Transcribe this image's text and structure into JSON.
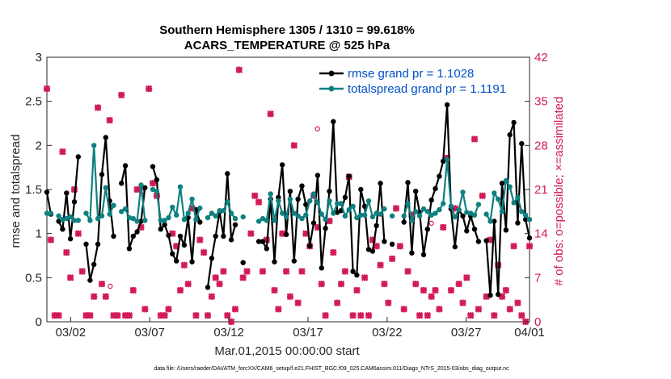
{
  "chart_data": {
    "type": "line",
    "title_line1": "Southern Hemisphere 1305 / 1310 = 99.618%",
    "title_line2": "ACARS_TEMPERATURE @ 525 hPa",
    "xlabel": "Mar.01,2015 00:00:00 start",
    "ylabel_left": "rmse and totalspread",
    "ylabel_right": "# of obs: o=possible; ×=assimilated",
    "x_range_days": [
      0.5,
      31.0
    ],
    "ylim_left": [
      0,
      3
    ],
    "ylim_right": [
      0,
      42
    ],
    "x_ticks": [
      {
        "label": "03/02",
        "day": 2
      },
      {
        "label": "03/07",
        "day": 7
      },
      {
        "label": "03/12",
        "day": 12
      },
      {
        "label": "03/17",
        "day": 17
      },
      {
        "label": "03/22",
        "day": 22
      },
      {
        "label": "03/27",
        "day": 27
      },
      {
        "label": "04/01",
        "day": 32
      }
    ],
    "y_ticks_left": [
      "0",
      "0.5",
      "1",
      "1.5",
      "2",
      "2.5",
      "3"
    ],
    "y_ticks_right": [
      "0",
      "7",
      "14",
      "21",
      "28",
      "35",
      "42"
    ],
    "colors": {
      "rmse": "#000000",
      "spread": "#0f8080",
      "obs": "#d11a56",
      "legend_text": "#0050c8"
    },
    "series": [
      {
        "name": "rmse",
        "legend": "rmse grand pr = 1.1028",
        "values": [
          1.47,
          1.22,
          null,
          1.14,
          1.05,
          1.46,
          0.94,
          1.36,
          1.87,
          null,
          0.88,
          0.47,
          0.65,
          0.88,
          1.67,
          2.09,
          1.37,
          0.97,
          null,
          1.57,
          1.77,
          0.83,
          0.97,
          1.02,
          1.14,
          1.52,
          null,
          1.76,
          1.61,
          1.05,
          1.1,
          0.98,
          0.77,
          0.69,
          0.97,
          0.87,
          1.18,
          0.68,
          1.27,
          1.13,
          null,
          0.39,
          0.72,
          0.97,
          1.25,
          0.97,
          1.68,
          0.93,
          1.1,
          null,
          0.67,
          null,
          null,
          null,
          0.91,
          0.91,
          0.83,
          1.39,
          0.68,
          1.41,
          1.78,
          0.99,
          1.48,
          0.69,
          1.39,
          1.54,
          1.33,
          0.86,
          1.12,
          1.66,
          0.61,
          1.06,
          1.48,
          2.27,
          1.24,
          1.26,
          1.41,
          1.65,
          0.57,
          0.53,
          1.5,
          1.31,
          0.82,
          0.8,
          1.09,
          1.57,
          0.91,
          null,
          0.88,
          null,
          null,
          1.13,
          1.58,
          0.78,
          1.48,
          1.24,
          0.76,
          1.05,
          1.38,
          1.51,
          1.65,
          1.82,
          2.46,
          1.28,
          0.85,
          1.27,
          1.2,
          1.03,
          1.2,
          1.05,
          0.91,
          null,
          0.92,
          0.3,
          1.14,
          0.31,
          1.57,
          1.04,
          2.12,
          2.26,
          1.12,
          2.02,
          1.16,
          0.95
        ]
      },
      {
        "name": "totalspread",
        "legend": "totalspread grand pr = 1.1191",
        "values": [
          1.23,
          1.23,
          null,
          1.2,
          1.16,
          1.17,
          1.19,
          1.15,
          1.15,
          null,
          1.23,
          1.15,
          2.0,
          1.17,
          1.2,
          1.52,
          1.22,
          1.32,
          null,
          1.25,
          1.28,
          1.18,
          1.17,
          1.14,
          1.55,
          1.15,
          null,
          1.5,
          1.48,
          1.15,
          1.15,
          1.18,
          1.3,
          1.21,
          1.53,
          1.16,
          1.23,
          1.39,
          1.16,
          1.29,
          null,
          1.18,
          1.23,
          1.2,
          1.26,
          1.26,
          1.36,
          1.23,
          1.17,
          null,
          1.19,
          null,
          null,
          null,
          1.14,
          1.17,
          1.15,
          1.45,
          1.15,
          1.37,
          1.23,
          1.19,
          1.39,
          1.23,
          1.2,
          1.17,
          1.21,
          1.37,
          1.45,
          1.35,
          1.22,
          1.16,
          1.37,
          1.23,
          1.34,
          1.34,
          1.2,
          1.27,
          1.31,
          1.18,
          1.21,
          1.21,
          1.37,
          1.19,
          1.23,
          1.22,
          1.28,
          null,
          1.2,
          null,
          null,
          1.2,
          1.34,
          1.15,
          1.25,
          1.2,
          1.28,
          1.25,
          1.21,
          1.23,
          1.27,
          1.34,
          1.84,
          1.31,
          1.19,
          1.27,
          1.47,
          1.24,
          1.23,
          1.21,
          1.33,
          null,
          1.22,
          1.14,
          1.46,
          1.39,
          1.25,
          1.6,
          1.53,
          1.35,
          1.41,
          1.25,
          1.21,
          1.16
        ]
      },
      {
        "name": "obs_assimilated",
        "axis": "right",
        "values": [
          37,
          13,
          1,
          1,
          27,
          11,
          7,
          21,
          14,
          8,
          1,
          1,
          4,
          34,
          6,
          4,
          32,
          1,
          1,
          36,
          1,
          1,
          5,
          21,
          15,
          2,
          37,
          22,
          20,
          1,
          1,
          2,
          14,
          12,
          5,
          9,
          6,
          18,
          1,
          13,
          11,
          1,
          4,
          7,
          6,
          8,
          1,
          0,
          2,
          40,
          7,
          8,
          14,
          20,
          19,
          8,
          13,
          33,
          5,
          2,
          14,
          8,
          4,
          28,
          3,
          8,
          14,
          12,
          20,
          15,
          6,
          1,
          16,
          11,
          3,
          6,
          8,
          23,
          1,
          5,
          1,
          7,
          1,
          13,
          12,
          9,
          6,
          3,
          10,
          18,
          12,
          2,
          8,
          17,
          6,
          1,
          5,
          1,
          4,
          5,
          2,
          15,
          26,
          5,
          18,
          6,
          3,
          7,
          1,
          29,
          2,
          20,
          4,
          13,
          1,
          9,
          4,
          5,
          2,
          12,
          3,
          1,
          0,
          12
        ]
      },
      {
        "name": "obs_possible",
        "axis": "right",
        "values": [
          37,
          13,
          1,
          1,
          27,
          11,
          7,
          21,
          14,
          8,
          1,
          1,
          4,
          34,
          6,
          4,
          32,
          1,
          1,
          36,
          1,
          1,
          5,
          21,
          15,
          2,
          37,
          22,
          20,
          1,
          1,
          2,
          14,
          12,
          5,
          9,
          6,
          18,
          1,
          13,
          11,
          1,
          4,
          7,
          6,
          8,
          1,
          0,
          2,
          40,
          7,
          8,
          14,
          20,
          19,
          8,
          13,
          33,
          5,
          2,
          14,
          8,
          4,
          28,
          3,
          8,
          14,
          12,
          20,
          15,
          6,
          1,
          16,
          11,
          3,
          6,
          8,
          23,
          1,
          5,
          1,
          7,
          1,
          13,
          12,
          9,
          6,
          3,
          10,
          18,
          12,
          2,
          8,
          17,
          6,
          1,
          5,
          1,
          4,
          5,
          2,
          15,
          26,
          5,
          18,
          6,
          3,
          7,
          1,
          29,
          2,
          20,
          4,
          13,
          1,
          9,
          4,
          5,
          2,
          12,
          3,
          1,
          0,
          12
        ],
        "extra_points": [
          {
            "day": 4.5,
            "value": 5
          },
          {
            "day": 6.5,
            "value": 20
          },
          {
            "day": 17.6,
            "value": 30
          },
          {
            "day": 24.8,
            "value": 15
          }
        ]
      }
    ],
    "footnote": "data file: /Users/raeder/DAI/ATM_forcXX/CAM6_setup/f.e21.FHIST_BGC.f09_025.CAM6assim.011/Diags_NTrS_2015-03/obs_diag_output.nc"
  }
}
